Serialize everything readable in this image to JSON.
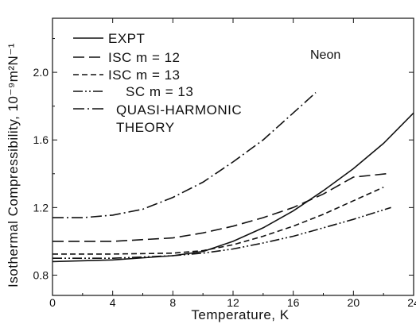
{
  "chart_data": {
    "type": "line",
    "title": "",
    "xlabel": "Temperature, K",
    "ylabel": "Isothermal Compressibility, 10⁻⁹m²N⁻¹",
    "annotation": "Neon",
    "xlim": [
      0,
      24
    ],
    "ylim": [
      0.68,
      2.32
    ],
    "x_ticks": [
      0,
      4,
      8,
      12,
      16,
      20,
      24
    ],
    "x_tick_labels": [
      "0",
      "4",
      "8",
      "12",
      "16",
      "20",
      "24"
    ],
    "y_ticks": [
      0.8,
      1.2,
      1.6,
      2.0
    ],
    "y_tick_labels": [
      "0.8",
      "1.2",
      "1.6",
      "2.0"
    ],
    "legend_position": "top-left",
    "series": [
      {
        "name": "EXPT",
        "style": "solid",
        "x": [
          0,
          4,
          8,
          10,
          12,
          14,
          16,
          18,
          20,
          22,
          24
        ],
        "y": [
          0.88,
          0.89,
          0.915,
          0.94,
          1.0,
          1.08,
          1.18,
          1.3,
          1.43,
          1.58,
          1.76
        ]
      },
      {
        "name": "ISC m = 12",
        "style": "long-dash",
        "x": [
          0,
          4,
          8,
          10,
          12,
          14,
          16,
          18,
          20,
          22.2
        ],
        "y": [
          1.0,
          1.0,
          1.02,
          1.05,
          1.09,
          1.14,
          1.2,
          1.28,
          1.38,
          1.4
        ]
      },
      {
        "name": "ISC m = 13",
        "style": "short-dash",
        "x": [
          0,
          4,
          8,
          10,
          12,
          14,
          16,
          18,
          20,
          22
        ],
        "y": [
          0.925,
          0.925,
          0.93,
          0.945,
          0.98,
          1.03,
          1.09,
          1.16,
          1.24,
          1.32
        ]
      },
      {
        "name": "SC m = 13",
        "style": "dash-dot-dot",
        "x": [
          0,
          4,
          8,
          10,
          12,
          14,
          16,
          18,
          20,
          22.5
        ],
        "y": [
          0.9,
          0.9,
          0.915,
          0.93,
          0.955,
          0.99,
          1.03,
          1.08,
          1.13,
          1.2
        ]
      },
      {
        "name": "QUASI-HARMONIC THEORY",
        "style": "dash-dot",
        "x": [
          0,
          2,
          4,
          6,
          8,
          10,
          12,
          14,
          16,
          17.5
        ],
        "y": [
          1.14,
          1.14,
          1.155,
          1.19,
          1.26,
          1.35,
          1.47,
          1.6,
          1.76,
          1.88
        ]
      }
    ]
  },
  "legend": {
    "labels": [
      "EXPT",
      "ISC m = 12",
      "ISC m = 13",
      "SC m = 13",
      "QUASI-HARMONIC",
      "THEORY"
    ]
  }
}
